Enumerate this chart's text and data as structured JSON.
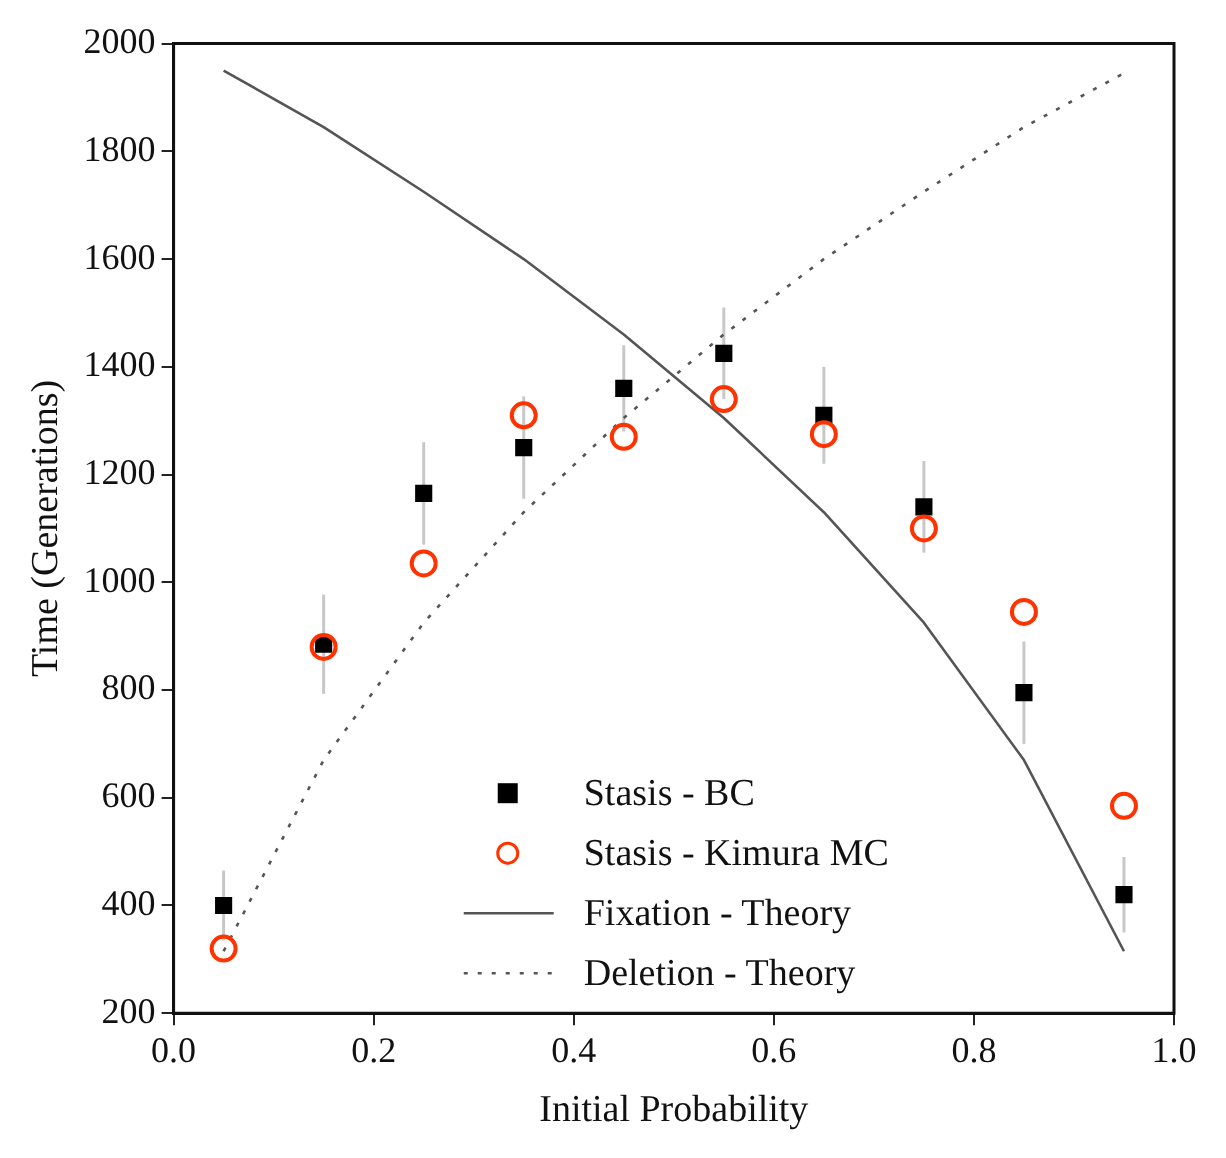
{
  "chart_data": {
    "type": "scatter",
    "xlabel": "Initial Probability",
    "ylabel": "Time (Generations)",
    "x": [
      0.05,
      0.15,
      0.25,
      0.35,
      0.45,
      0.55,
      0.65,
      0.75,
      0.85,
      0.95
    ],
    "xlim": [
      0.0,
      1.0
    ],
    "xticks": [
      {
        "value": 0,
        "label": "0.0"
      },
      0.2,
      0.4,
      0.6,
      0.8,
      {
        "value": 1,
        "label": "1.0"
      }
    ],
    "ylim": [
      200,
      2000
    ],
    "yticks": [
      200,
      400,
      600,
      800,
      1000,
      1200,
      1400,
      1600,
      1800,
      2000
    ],
    "grid": false,
    "legend": "bottom",
    "series": [
      {
        "name": "Stasis - BC",
        "marker": "square",
        "color": "#000000",
        "values": [
          400,
          885,
          1165,
          1250,
          1360,
          1425,
          1310,
          1140,
          795,
          420
        ],
        "errors": [
          65,
          92,
          95,
          95,
          80,
          85,
          90,
          85,
          95,
          70
        ]
      },
      {
        "name": "Stasis - Kimura MC",
        "marker": "circle",
        "color": "#ff3300",
        "values": [
          320,
          880,
          1035,
          1310,
          1270,
          1340,
          1275,
          1100,
          945,
          585
        ]
      },
      {
        "name": "Fixation - Theory",
        "type": "line",
        "marker": "none",
        "line_style": "solid",
        "color": "#555555",
        "values": [
          1950,
          1845,
          1725,
          1600,
          1460,
          1305,
          1130,
          925,
          670,
          315
        ]
      },
      {
        "name": "Deletion - Theory",
        "type": "line",
        "marker": "none",
        "line_style": "dotted",
        "color": "#555555",
        "values": [
          315,
          670,
          925,
          1130,
          1305,
          1460,
          1600,
          1725,
          1845,
          1945
        ]
      }
    ]
  }
}
